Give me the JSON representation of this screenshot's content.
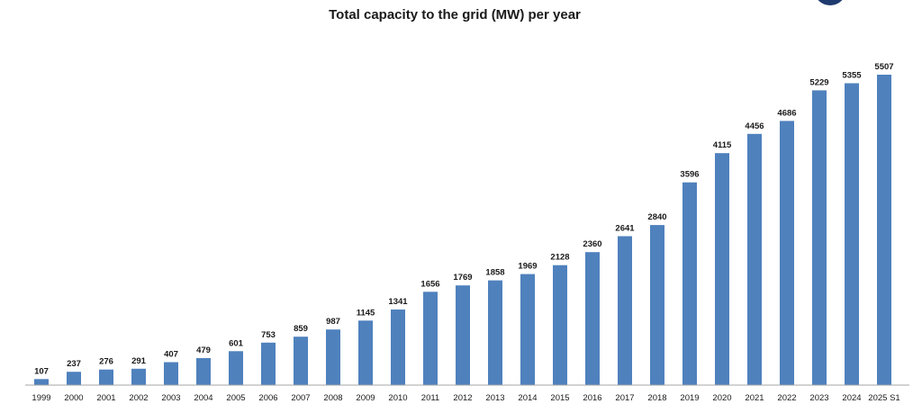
{
  "chart_data": {
    "type": "bar",
    "title": "Total capacity to the grid (MW) per year",
    "categories": [
      "1999",
      "2000",
      "2001",
      "2002",
      "2003",
      "2004",
      "2005",
      "2006",
      "2007",
      "2008",
      "2009",
      "2010",
      "2011",
      "2012",
      "2013",
      "2014",
      "2015",
      "2016",
      "2017",
      "2018",
      "2019",
      "2020",
      "2021",
      "2022",
      "2023",
      "2024",
      "2025 S1"
    ],
    "values": [
      107,
      237,
      276,
      291,
      407,
      479,
      601,
      753,
      859,
      987,
      1145,
      1341,
      1656,
      1769,
      1858,
      1969,
      2128,
      2360,
      2641,
      2840,
      3596,
      4115,
      4456,
      4686,
      5229,
      5355,
      5507
    ],
    "data_labels": true,
    "grid": false,
    "legend": "none",
    "bar_color": "#4f81bd",
    "ylim": [
      0,
      5700
    ]
  },
  "colors": {
    "bar": "#4f81bd",
    "logo": "#1f3a6e"
  }
}
